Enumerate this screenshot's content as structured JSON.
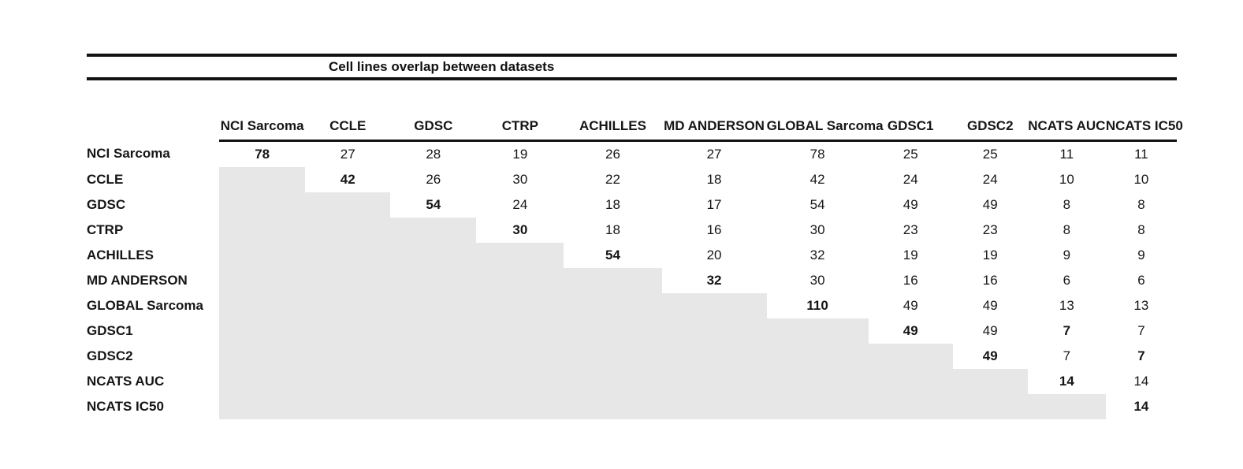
{
  "chart_data": {
    "type": "table",
    "title": "Cell lines overlap between datasets",
    "columns": [
      "NCI Sarcoma",
      "CCLE",
      "GDSC",
      "CTRP",
      "ACHILLES",
      "MD ANDERSON",
      "GLOBAL Sarcoma",
      "GDSC1",
      "GDSC2",
      "NCATS AUC",
      "NCATS IC50"
    ],
    "rows": [
      {
        "label": "NCI Sarcoma",
        "values": [
          "78",
          "27",
          "28",
          "19",
          "26",
          "27",
          "78",
          "25",
          "25",
          "11",
          "11"
        ],
        "bold_cols": [
          0
        ]
      },
      {
        "label": "CCLE",
        "values": [
          null,
          "42",
          "26",
          "30",
          "22",
          "18",
          "42",
          "24",
          "24",
          "10",
          "10"
        ],
        "bold_cols": [
          1
        ]
      },
      {
        "label": "GDSC",
        "values": [
          null,
          null,
          "54",
          "24",
          "18",
          "17",
          "54",
          "49",
          "49",
          "8",
          "8"
        ],
        "bold_cols": [
          2
        ]
      },
      {
        "label": "CTRP",
        "values": [
          null,
          null,
          null,
          "30",
          "18",
          "16",
          "30",
          "23",
          "23",
          "8",
          "8"
        ],
        "bold_cols": [
          3
        ]
      },
      {
        "label": "ACHILLES",
        "values": [
          null,
          null,
          null,
          null,
          "54",
          "20",
          "32",
          "19",
          "19",
          "9",
          "9"
        ],
        "bold_cols": [
          4
        ]
      },
      {
        "label": "MD ANDERSON",
        "values": [
          null,
          null,
          null,
          null,
          null,
          "32",
          "30",
          "16",
          "16",
          "6",
          "6"
        ],
        "bold_cols": [
          5
        ]
      },
      {
        "label": "GLOBAL Sarcoma",
        "values": [
          null,
          null,
          null,
          null,
          null,
          null,
          "110",
          "49",
          "49",
          "13",
          "13"
        ],
        "bold_cols": [
          6
        ]
      },
      {
        "label": "GDSC1",
        "values": [
          null,
          null,
          null,
          null,
          null,
          null,
          null,
          "49",
          "49",
          "7",
          "7"
        ],
        "bold_cols": [
          7,
          9
        ]
      },
      {
        "label": "GDSC2",
        "values": [
          null,
          null,
          null,
          null,
          null,
          null,
          null,
          null,
          "49",
          "7",
          "7"
        ],
        "bold_cols": [
          8,
          10
        ]
      },
      {
        "label": "NCATS AUC",
        "values": [
          null,
          null,
          null,
          null,
          null,
          null,
          null,
          null,
          null,
          "14",
          "14"
        ],
        "bold_cols": [
          9
        ]
      },
      {
        "label": "NCATS IC50",
        "values": [
          null,
          null,
          null,
          null,
          null,
          null,
          null,
          null,
          null,
          null,
          "14"
        ],
        "bold_cols": [
          10
        ]
      }
    ],
    "shaded_region": "lower-triangle",
    "shade_color": "#e7e7e7",
    "rule_color": "#121212"
  }
}
